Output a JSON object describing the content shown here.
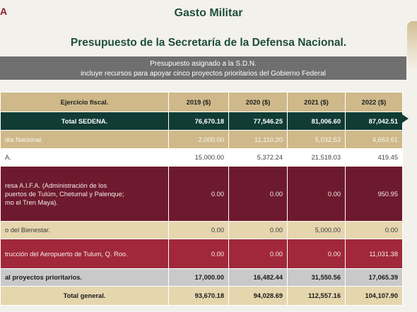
{
  "page": {
    "logo_fragment": "A",
    "title": "Gasto Militar",
    "subtitle": "Presupuesto de la Secretaría de la Defensa Nacional."
  },
  "banner": {
    "line1": "Presupuesto asignado a la S.D.N.",
    "line2": "incluye recursos para apoyar cinco proyectos prioritarios del Gobierno Federal"
  },
  "table": {
    "headers": [
      "Ejercicio fiscal.",
      "2019 ($)",
      "2020 ($)",
      "2021 ($)",
      "2022 ($)"
    ],
    "rows": [
      {
        "label": "Total SEDENA.",
        "values": [
          "76,670.18",
          "77,546.25",
          "81,006.60",
          "87,042.51"
        ]
      },
      {
        "label": "dia Nacional.",
        "values": [
          "2,000.00",
          "11,110.20",
          "5,032.53",
          "4,663.61"
        ]
      },
      {
        "label": "A.",
        "values": [
          "15,000.00",
          "5,372.24",
          "21,518.03",
          "419.45"
        ]
      },
      {
        "label": "resa A.I.F.A. (Administración de los\npuertos de Tulúm, Chetumal y Palenque;\nmo el Tren Maya).",
        "values": [
          "0.00",
          "0.00",
          "0.00",
          "950.95"
        ]
      },
      {
        "label": "o del Bienestar.",
        "values": [
          "0.00",
          "0.00",
          "5,000.00",
          "0.00"
        ]
      },
      {
        "label": "trucción del Aeropuerto de Tulum, Q. Roo.",
        "values": [
          "0.00",
          "0.00",
          "0.00",
          "11,031.38"
        ]
      },
      {
        "label": "al proyectos prioritarios.",
        "values": [
          "17,000.00",
          "16,482.44",
          "31,550.56",
          "17,065.39"
        ]
      },
      {
        "label": "Total general.",
        "values": [
          "93,670.18",
          "94,028.69",
          "112,557.16",
          "104,107.90"
        ]
      }
    ]
  }
}
